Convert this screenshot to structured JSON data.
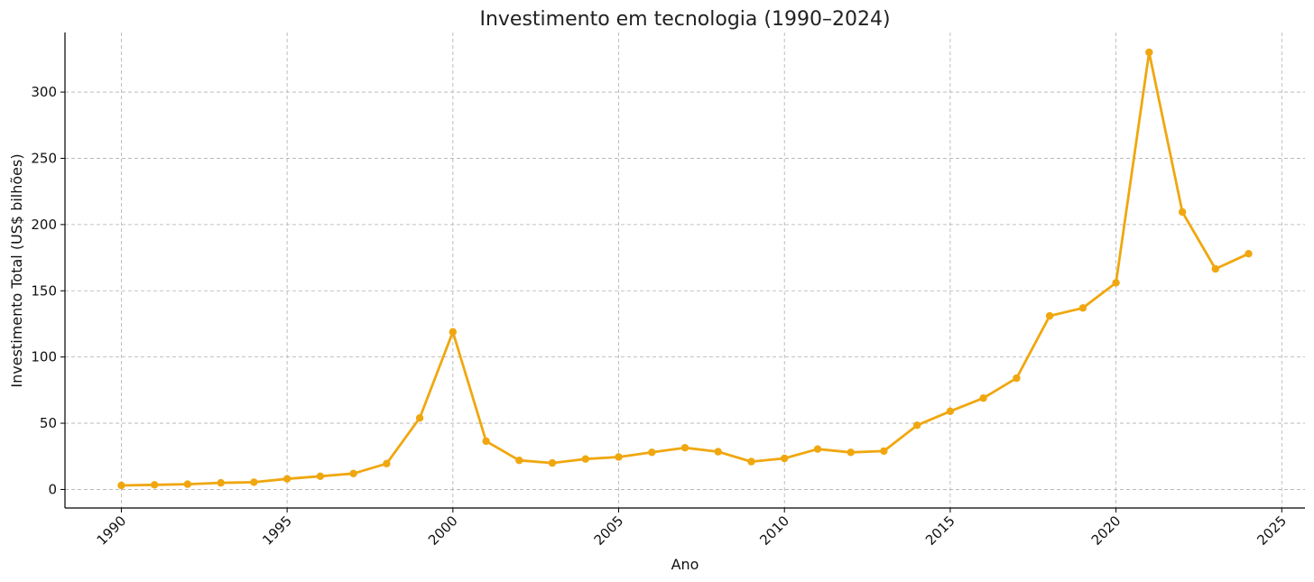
{
  "chart_data": {
    "type": "line",
    "title": "Investimento em tecnologia (1990–2024)",
    "xlabel": "Ano",
    "ylabel": "Investimento Total (US$ bilhões)",
    "xlim": [
      1988.3,
      2025.7
    ],
    "ylim": [
      -14,
      345
    ],
    "xticks": [
      "1990",
      "1995",
      "2000",
      "2005",
      "2010",
      "2015",
      "2020",
      "2025"
    ],
    "yticks": [
      "0",
      "50",
      "100",
      "150",
      "200",
      "250",
      "300"
    ],
    "grid": true,
    "line_color": "#f0a70f",
    "series": [
      {
        "x": [
          1990,
          1991,
          1992,
          1993,
          1994,
          1995,
          1996,
          1997,
          1998,
          1999,
          2000,
          2001,
          2002,
          2003,
          2004,
          2005,
          2006,
          2007,
          2008,
          2009,
          2010,
          2011,
          2012,
          2013,
          2014,
          2015,
          2016,
          2017,
          2018,
          2019,
          2020,
          2021,
          2022,
          2023,
          2024
        ],
        "values": [
          3,
          3.5,
          4,
          5,
          5.5,
          8,
          10,
          12,
          19.5,
          54,
          119,
          36.5,
          22,
          20,
          23,
          24.5,
          28,
          31.5,
          28.5,
          21,
          23.5,
          30.5,
          28,
          29,
          48.5,
          59,
          69,
          84,
          131,
          137,
          156,
          330,
          209.5,
          166.5,
          178
        ]
      }
    ]
  }
}
